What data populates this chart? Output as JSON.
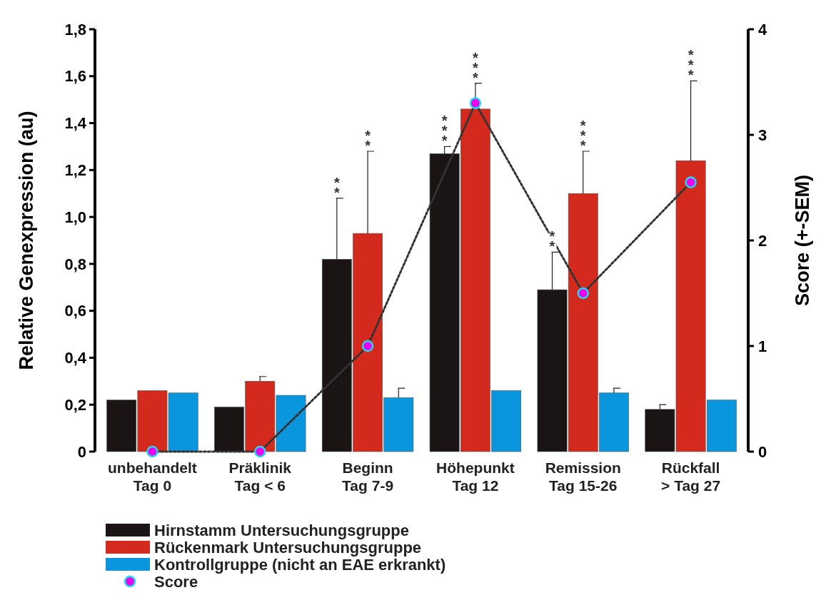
{
  "chart_data": {
    "type": "bar",
    "ylabel": "Relative Genexpression (au)",
    "y2label": "Score (+-SEM)",
    "categories": [
      "unbehandelt\nTag 0",
      "Präklinik\nTag < 6",
      "Beginn\nTag 7-9",
      "Höhepunkt\nTag 12",
      "Remission\nTag 15-26",
      "Rückfall\n> Tag 27"
    ],
    "series": [
      {
        "name": "Hirnstamm Untersuchungsgruppe",
        "color": "#1a1414",
        "values": [
          0.22,
          0.19,
          0.82,
          1.27,
          0.69,
          0.18
        ],
        "errors": [
          null,
          null,
          [
            0.82,
            1.08
          ],
          [
            1.27,
            1.3
          ],
          [
            0.69,
            0.85
          ],
          [
            0.18,
            0.2
          ]
        ]
      },
      {
        "name": "Rückenmark Untersuchungsgruppe",
        "color": "#d42a1e",
        "values": [
          0.26,
          0.3,
          0.93,
          1.46,
          1.1,
          1.24
        ],
        "errors": [
          null,
          [
            0.3,
            0.32
          ],
          [
            0.93,
            1.28
          ],
          [
            1.46,
            1.57
          ],
          [
            1.1,
            1.28
          ],
          [
            1.24,
            1.58
          ]
        ]
      },
      {
        "name": "Kontrollgruppe (nicht an EAE erkrankt)",
        "color": "#0a96dc",
        "values": [
          0.25,
          0.24,
          0.23,
          0.26,
          0.25,
          0.22
        ],
        "errors": [
          null,
          null,
          [
            0.23,
            0.27
          ],
          null,
          [
            0.25,
            0.27
          ],
          null
        ]
      },
      {
        "name": "Score",
        "type": "line",
        "axis": "y2",
        "color": "#22d8f0",
        "marker": "circle",
        "line_style": "dotted",
        "values": [
          0,
          0,
          1,
          3.3,
          1.5,
          2.55
        ]
      }
    ],
    "ylim": [
      0,
      1.8
    ],
    "yticks": [
      0,
      {
        "value": 0.2,
        "label": "0,2"
      },
      {
        "value": 0.4,
        "label": "0,4"
      },
      {
        "value": 0.6,
        "label": "0,6"
      },
      {
        "value": 0.8,
        "label": "0,8"
      },
      {
        "value": 1,
        "label": "1,0"
      },
      {
        "value": 1.2,
        "label": "1,2"
      },
      {
        "value": 1.4,
        "label": "1,4"
      },
      {
        "value": 1.6,
        "label": "1,6"
      },
      {
        "value": 1.8,
        "label": "1,8"
      }
    ],
    "y2lim": [
      0,
      4
    ],
    "y2ticks": [
      0,
      1,
      2,
      3,
      4
    ],
    "annotations": [
      {
        "text": "**",
        "x": "Beginn\nTag 7-9",
        "y": 1.08
      },
      {
        "text": "**",
        "x": "Beginn\nTag 7-9",
        "y": 1.28
      },
      "***",
      {
        "text": "***",
        "x": "Höhepunkt\nTag 12",
        "y": 1.57
      },
      "**",
      {
        "text": "***",
        "x": "Remission\nTag 15-26",
        "y": 1.28
      },
      {
        "text": "***",
        "x": "Rückfall\n> Tag 27",
        "y": 1.58
      }
    ],
    "legend": "bottom left",
    "grid": false
  }
}
